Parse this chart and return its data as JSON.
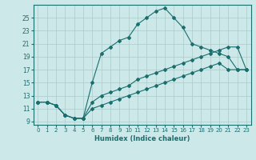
{
  "xlabel": "Humidex (Indice chaleur)",
  "xlim": [
    -0.5,
    23.5
  ],
  "ylim": [
    8.5,
    27
  ],
  "yticks": [
    9,
    11,
    13,
    15,
    17,
    19,
    21,
    23,
    25
  ],
  "xticks": [
    0,
    1,
    2,
    3,
    4,
    5,
    6,
    7,
    8,
    9,
    10,
    11,
    12,
    13,
    14,
    15,
    16,
    17,
    18,
    19,
    20,
    21,
    22,
    23
  ],
  "bg_color": "#cce8e8",
  "grid_color": "#aacccc",
  "line_color": "#1a6e6e",
  "series": [
    {
      "x": [
        0,
        1,
        2,
        3,
        4,
        5,
        6,
        7,
        8,
        9,
        10,
        11,
        12,
        13,
        14,
        15,
        16,
        17,
        18,
        19,
        20,
        21,
        22,
        23
      ],
      "y": [
        12,
        12,
        11.5,
        10,
        9.5,
        9.5,
        15,
        19.5,
        20.5,
        21.5,
        22,
        24,
        25,
        26,
        26.5,
        25,
        23.5,
        21,
        20.5,
        20,
        19.5,
        19,
        17,
        17
      ]
    },
    {
      "x": [
        0,
        1,
        2,
        3,
        4,
        5,
        6,
        7,
        8,
        9,
        10,
        11,
        12,
        13,
        14,
        15,
        16,
        17,
        18,
        19,
        20,
        21,
        22,
        23
      ],
      "y": [
        12,
        12,
        11.5,
        10,
        9.5,
        9.5,
        12,
        13,
        13.5,
        14,
        14.5,
        15.5,
        16,
        16.5,
        17,
        17.5,
        18,
        18.5,
        19,
        19.5,
        20,
        20.5,
        20.5,
        17
      ]
    },
    {
      "x": [
        0,
        1,
        2,
        3,
        4,
        5,
        6,
        7,
        8,
        9,
        10,
        11,
        12,
        13,
        14,
        15,
        16,
        17,
        18,
        19,
        20,
        21,
        22,
        23
      ],
      "y": [
        12,
        12,
        11.5,
        10,
        9.5,
        9.5,
        11,
        11.5,
        12,
        12.5,
        13,
        13.5,
        14,
        14.5,
        15,
        15.5,
        16,
        16.5,
        17,
        17.5,
        18,
        17,
        17,
        17
      ]
    }
  ]
}
